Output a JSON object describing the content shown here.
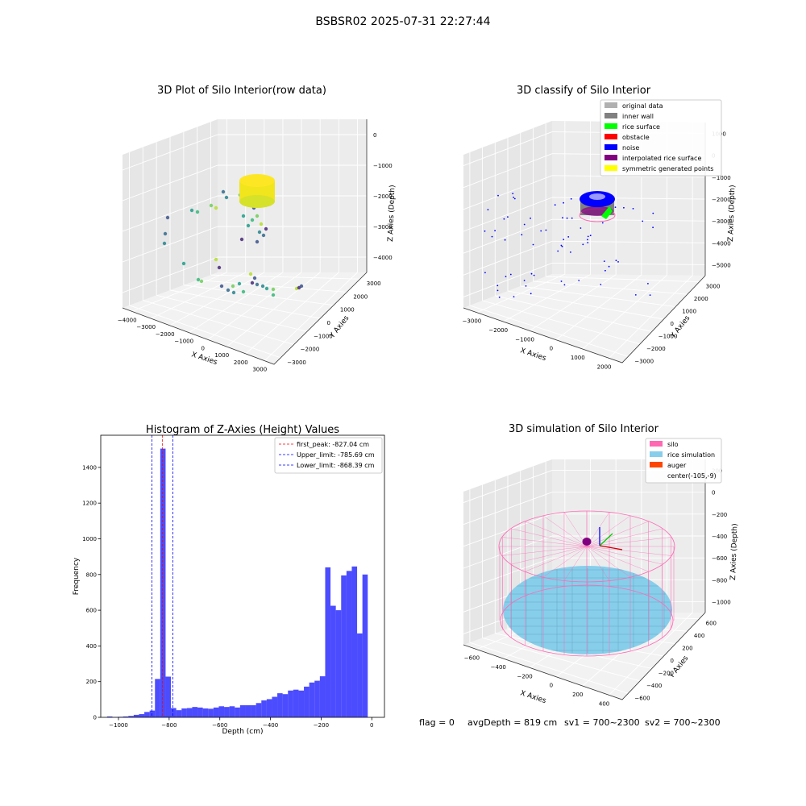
{
  "figure": {
    "suptitle": "BSBSR02 2025-07-31 22:27:44",
    "footer": {
      "flag": "flag = 0",
      "avg_depth": "avgDepth = 819 cm",
      "sv1": "sv1 = 700~2300",
      "sv2": "sv2 = 700~2300"
    }
  },
  "panels": {
    "raw": {
      "title": "3D Plot of Silo Interior(row data)",
      "xlabel": "X Axies",
      "ylabel": "Y Axies",
      "zlabel": "Z Axies (Depth)"
    },
    "classify": {
      "title": "3D classify of Silo Interior",
      "xlabel": "X Axies",
      "ylabel": "Y Axies",
      "zlabel": "Z Axies (Depth)",
      "legend": [
        {
          "label": "original data",
          "color": "#b0b0b0"
        },
        {
          "label": "inner wall",
          "color": "#808080"
        },
        {
          "label": "rice surface",
          "color": "#00ff00"
        },
        {
          "label": "obstacle",
          "color": "#ff0000"
        },
        {
          "label": "noise",
          "color": "#0000ff"
        },
        {
          "label": "interpolated rice surface",
          "color": "#800080"
        },
        {
          "label": "symmetric generated points",
          "color": "#ffff00"
        }
      ]
    },
    "simulation": {
      "title": "3D simulation of Silo Interior",
      "xlabel": "X Axies",
      "ylabel": "Y Axies",
      "zlabel": "Z Axies (Depth)",
      "legend": [
        {
          "label": "silo",
          "color": "#ff69b4"
        },
        {
          "label": "rice simulation",
          "color": "#87ceeb"
        },
        {
          "label": "auger",
          "color": "#ff4500"
        },
        {
          "label": "center(-105,-9)",
          "color": ""
        }
      ]
    }
  },
  "axes3d": {
    "raw": {
      "x": [
        "−4000",
        "−3000",
        "−2000",
        "−1000",
        "0",
        "1000",
        "2000",
        "3000"
      ],
      "y": [
        "−3000",
        "−2000",
        "−1000",
        "0",
        "1000",
        "2000",
        "3000"
      ],
      "z": [
        "−4000",
        "−3000",
        "−2000",
        "−1000",
        "0"
      ]
    },
    "classify": {
      "x": [
        "−3000",
        "−2000",
        "−1000",
        "0",
        "1000",
        "2000"
      ],
      "y": [
        "−3000",
        "−2000",
        "−1000",
        "0",
        "1000",
        "2000",
        "3000"
      ],
      "z": [
        "−5000",
        "−4000",
        "−3000",
        "−2000",
        "−1000",
        "0",
        "1000"
      ]
    },
    "simulation": {
      "x": [
        "−600",
        "−400",
        "−200",
        "0",
        "200",
        "400"
      ],
      "y": [
        "−600",
        "−400",
        "−200",
        "0",
        "200",
        "400",
        "600"
      ],
      "z": [
        "−1000",
        "−800",
        "−600",
        "−400",
        "−200",
        "0",
        "200"
      ]
    }
  },
  "chart_data": {
    "type": "bar",
    "title": "Histogram of Z-Axies (Height) Values",
    "xlabel": "Depth (cm)",
    "ylabel": "Frequency",
    "xlim": [
      -1070,
      50
    ],
    "ylim": [
      0,
      1580
    ],
    "xticks": [
      -1000,
      -800,
      -600,
      -400,
      -200,
      0
    ],
    "yticks": [
      0,
      200,
      400,
      600,
      800,
      1000,
      1200,
      1400
    ],
    "xtick_labels": [
      "−1000",
      "−800",
      "−600",
      "−400",
      "−200",
      "0"
    ],
    "ytick_labels": [
      "0",
      "200",
      "400",
      "600",
      "800",
      "1000",
      "1200",
      "1400"
    ],
    "color": "#0000ff",
    "bins": [
      {
        "x0": -1045,
        "x1": -1024,
        "count": 5
      },
      {
        "x0": -1024,
        "x1": -1003,
        "count": 2
      },
      {
        "x0": -1003,
        "x1": -982,
        "count": 3
      },
      {
        "x0": -982,
        "x1": -961,
        "count": 5
      },
      {
        "x0": -961,
        "x1": -940,
        "count": 8
      },
      {
        "x0": -940,
        "x1": -919,
        "count": 14
      },
      {
        "x0": -919,
        "x1": -898,
        "count": 18
      },
      {
        "x0": -898,
        "x1": -877,
        "count": 30
      },
      {
        "x0": -877,
        "x1": -856,
        "count": 38
      },
      {
        "x0": -856,
        "x1": -835,
        "count": 215
      },
      {
        "x0": -835,
        "x1": -814,
        "count": 1505
      },
      {
        "x0": -814,
        "x1": -793,
        "count": 228
      },
      {
        "x0": -793,
        "x1": -772,
        "count": 52
      },
      {
        "x0": -772,
        "x1": -751,
        "count": 40
      },
      {
        "x0": -751,
        "x1": -730,
        "count": 50
      },
      {
        "x0": -730,
        "x1": -709,
        "count": 52
      },
      {
        "x0": -709,
        "x1": -688,
        "count": 58
      },
      {
        "x0": -688,
        "x1": -667,
        "count": 55
      },
      {
        "x0": -667,
        "x1": -646,
        "count": 50
      },
      {
        "x0": -646,
        "x1": -625,
        "count": 48
      },
      {
        "x0": -625,
        "x1": -604,
        "count": 55
      },
      {
        "x0": -604,
        "x1": -583,
        "count": 62
      },
      {
        "x0": -583,
        "x1": -562,
        "count": 58
      },
      {
        "x0": -562,
        "x1": -541,
        "count": 62
      },
      {
        "x0": -541,
        "x1": -520,
        "count": 55
      },
      {
        "x0": -520,
        "x1": -499,
        "count": 68
      },
      {
        "x0": -499,
        "x1": -478,
        "count": 68
      },
      {
        "x0": -478,
        "x1": -457,
        "count": 68
      },
      {
        "x0": -457,
        "x1": -436,
        "count": 80
      },
      {
        "x0": -436,
        "x1": -415,
        "count": 95
      },
      {
        "x0": -415,
        "x1": -394,
        "count": 102
      },
      {
        "x0": -394,
        "x1": -373,
        "count": 115
      },
      {
        "x0": -373,
        "x1": -352,
        "count": 135
      },
      {
        "x0": -352,
        "x1": -331,
        "count": 130
      },
      {
        "x0": -331,
        "x1": -310,
        "count": 150
      },
      {
        "x0": -310,
        "x1": -289,
        "count": 155
      },
      {
        "x0": -289,
        "x1": -268,
        "count": 150
      },
      {
        "x0": -268,
        "x1": -247,
        "count": 172
      },
      {
        "x0": -247,
        "x1": -226,
        "count": 195
      },
      {
        "x0": -226,
        "x1": -205,
        "count": 205
      },
      {
        "x0": -205,
        "x1": -184,
        "count": 230
      },
      {
        "x0": -184,
        "x1": -163,
        "count": 840
      },
      {
        "x0": -163,
        "x1": -142,
        "count": 625
      },
      {
        "x0": -142,
        "x1": -121,
        "count": 600
      },
      {
        "x0": -121,
        "x1": -100,
        "count": 795
      },
      {
        "x0": -100,
        "x1": -79,
        "count": 820
      },
      {
        "x0": -79,
        "x1": -58,
        "count": 845
      },
      {
        "x0": -58,
        "x1": -37,
        "count": 470
      },
      {
        "x0": -37,
        "x1": -16,
        "count": 800
      }
    ],
    "vlines": [
      {
        "x": -827.04,
        "color": "#ff0000",
        "label": "first_peak: -827.04 cm"
      },
      {
        "x": -785.69,
        "color": "#0000ff",
        "label": "Upper_limit: -785.69 cm"
      },
      {
        "x": -868.39,
        "color": "#0000ff",
        "label": "Lower_limit: -868.39 cm"
      }
    ],
    "legend_position": "upper right",
    "grid": false
  }
}
